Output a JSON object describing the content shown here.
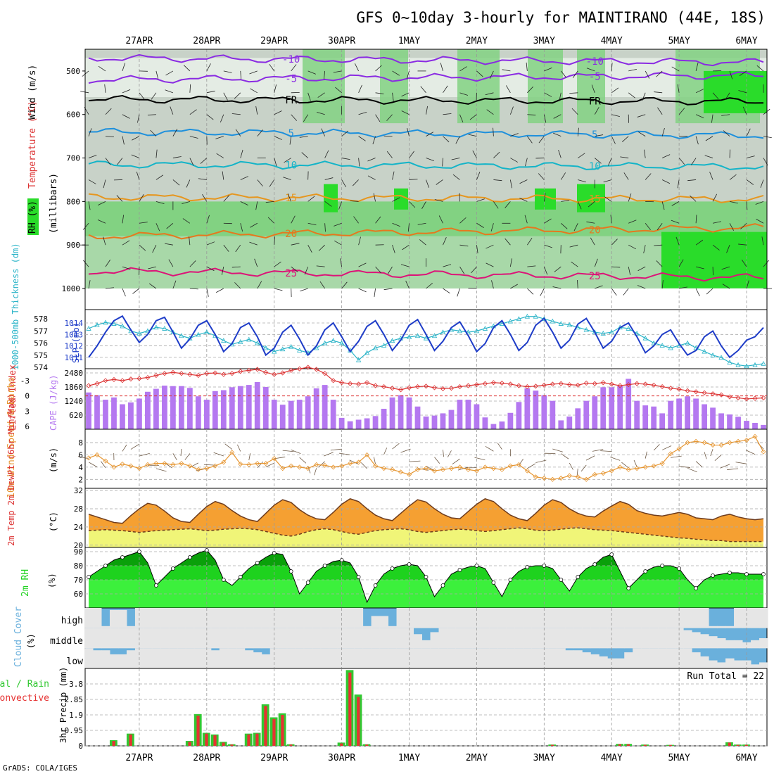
{
  "title": "GFS 0~10day 3-hourly for MAINTIRANO (44E, 18S)",
  "credit": "GrADS: COLA/IGES",
  "dates": [
    "27APR",
    "28APR",
    "29APR",
    "30APR",
    "1MAY",
    "2MAY",
    "3MAY",
    "4MAY",
    "5MAY",
    "6MAY"
  ],
  "colors": {
    "rh_light": "#c8d2c8",
    "rh_mid": "#82d282",
    "rh_high": "#2adc2a",
    "slp": "#1e3cc8",
    "thickness": "#2ab4c8",
    "lifted": "#dc3232",
    "cape": "#b478f0",
    "wind_speed": "#e69632",
    "barb": "#6e5a46",
    "temp_fill": "#f5a032",
    "temp_max": "#f06414",
    "dew_fill": "#f0f578",
    "rh2m_dark": "#0aa00a",
    "rh2m_mid": "#1ed21e",
    "rh2m_light": "#3cf03c",
    "cloud_blue": "#6ab0dc",
    "precip_total": "#32c832",
    "precip_conv": "#e63232"
  },
  "panels": {
    "upper": {
      "ylabels": [
        "Wind (m/s)",
        "Temperature (°C)",
        "RH (%)"
      ],
      "yunit": "(millibars)",
      "levels": [
        "500",
        "600",
        "700",
        "800",
        "900",
        "1000"
      ],
      "isotherms": [
        {
          "label": "-10",
          "color": "#8a2be2",
          "values": [
            -10,
            -10,
            -10,
            -10,
            -10,
            -10,
            -10,
            -10,
            -10,
            -10
          ]
        },
        {
          "label": "-5",
          "color": "#8a2be2",
          "values": [
            -5,
            -5,
            -5,
            -5,
            -5,
            -5,
            -5,
            -5,
            -5,
            -5
          ]
        },
        {
          "label": "FR",
          "color": "#000000",
          "values": [
            0,
            0,
            0,
            0,
            0,
            0,
            0,
            0,
            0,
            0
          ]
        },
        {
          "label": "5",
          "color": "#1e90dc",
          "values": [
            5,
            5,
            5,
            5,
            5,
            5,
            5,
            5,
            5,
            5
          ]
        },
        {
          "label": "10",
          "color": "#14b4c8",
          "values": [
            10,
            10,
            10,
            10,
            10,
            10,
            10,
            10,
            10,
            10
          ]
        },
        {
          "label": "15",
          "color": "#e6961e",
          "values": [
            15,
            15,
            15,
            15,
            15,
            15,
            15,
            15,
            15,
            15
          ]
        },
        {
          "label": "20",
          "color": "#e6781e",
          "values": [
            20,
            20,
            20,
            20,
            20,
            20,
            20,
            20,
            20,
            20
          ]
        },
        {
          "label": "25",
          "color": "#dc1478",
          "values": [
            25,
            25,
            25,
            25,
            25,
            25,
            25,
            25,
            25,
            25
          ]
        }
      ],
      "rh_contour_labels": [
        "30",
        "30",
        "50",
        "50"
      ]
    },
    "slp": {
      "ylabel_left": "1000-500mb Thickness (dm)",
      "ylabel_right": "SLP (mb)",
      "left_ticks": [
        "578",
        "577",
        "576",
        "575",
        "574"
      ],
      "right_ticks": [
        "1014",
        "1013",
        "1012",
        "1011"
      ]
    },
    "cape": {
      "ylabel_left": "Lifted Index",
      "ylabel_right": "CAPE (J/kg)",
      "left_ticks": [
        "-3",
        "0",
        "3",
        "6"
      ],
      "right_ticks": [
        "2480",
        "1860",
        "1240",
        "620"
      ]
    },
    "wind10m": {
      "ylabel": "10m Wind Speed & Barbs",
      "yunit": "(m/s)",
      "ticks": [
        "8",
        "6",
        "4",
        "2"
      ]
    },
    "temp2m": {
      "ylabel": "2m Temp 2m DewPt (6hr Min/Max)",
      "yunit": "(°C)",
      "ticks": [
        "32",
        "28",
        "24",
        "20"
      ]
    },
    "rh2m": {
      "ylabel": "2m RH",
      "yunit": "(%)",
      "ticks": [
        "90",
        "80",
        "70",
        "60"
      ]
    },
    "cloud": {
      "ylabel": "Cloud Cover",
      "yunit": "(%)",
      "levels": [
        "high",
        "middle",
        "low"
      ]
    },
    "precip": {
      "ylabel_left_a": "Total / Rain",
      "ylabel_left_b": "Convective",
      "ylabel": "3hr Precip (mm)",
      "ticks": [
        "3.8",
        "2.85",
        "1.9",
        "0.95",
        "0"
      ],
      "run_total": "Run Total = 22"
    }
  },
  "chart_data": {
    "type": "meteogram",
    "time_step_hours": 3,
    "n_steps": 81,
    "slp_mb": [
      1011.0,
      1012.0,
      1013.2,
      1014.2,
      1014.6,
      1013.4,
      1012.3,
      1013.0,
      1014.2,
      1014.5,
      1013.2,
      1011.8,
      1012.6,
      1013.8,
      1014.2,
      1013.0,
      1011.5,
      1012.2,
      1013.6,
      1014.0,
      1012.8,
      1011.2,
      1011.8,
      1013.2,
      1013.8,
      1012.6,
      1011.2,
      1012.0,
      1013.4,
      1014.0,
      1012.8,
      1011.5,
      1012.4,
      1013.7,
      1014.2,
      1013.0,
      1011.6,
      1012.5,
      1013.8,
      1014.3,
      1013.0,
      1011.6,
      1012.4,
      1013.6,
      1014.1,
      1012.9,
      1011.5,
      1012.2,
      1013.6,
      1014.2,
      1013.0,
      1011.6,
      1012.3,
      1013.8,
      1014.4,
      1013.2,
      1011.8,
      1012.5,
      1013.9,
      1014.4,
      1013.2,
      1011.8,
      1012.4,
      1013.6,
      1014.0,
      1012.8,
      1011.4,
      1012.0,
      1013.0,
      1013.4,
      1012.2,
      1011.2,
      1011.6,
      1012.8,
      1013.3,
      1012.0,
      1011.0,
      1011.6,
      1012.5,
      1012.8,
      1013.6
    ],
    "thickness_dm": [
      577.2,
      577.5,
      577.7,
      577.6,
      577.4,
      577.0,
      576.8,
      577.0,
      577.3,
      577.2,
      576.9,
      576.6,
      576.4,
      576.7,
      576.9,
      576.6,
      576.2,
      575.9,
      576.1,
      576.3,
      576.0,
      575.6,
      575.3,
      575.5,
      575.7,
      575.4,
      575.2,
      575.6,
      576.0,
      576.2,
      576.0,
      575.4,
      574.6,
      575.2,
      575.6,
      575.8,
      576.2,
      576.4,
      576.5,
      576.6,
      576.4,
      576.6,
      576.9,
      577.1,
      577.0,
      576.9,
      577.0,
      577.2,
      577.4,
      577.6,
      577.8,
      578.0,
      578.2,
      578.2,
      578.0,
      577.8,
      577.6,
      577.5,
      577.3,
      577.1,
      576.9,
      576.8,
      576.9,
      577.3,
      577.2,
      576.8,
      576.4,
      576.0,
      575.8,
      575.6,
      575.8,
      576.0,
      575.6,
      575.3,
      575.0,
      574.8,
      574.4,
      574.2,
      574.1,
      574.2,
      574.3
    ],
    "lifted_index": [
      -2.0,
      -2.4,
      -3.0,
      -3.2,
      -3.0,
      -3.3,
      -3.4,
      -3.6,
      -4.0,
      -4.4,
      -4.6,
      -4.4,
      -4.2,
      -4.0,
      -4.4,
      -4.5,
      -4.2,
      -4.4,
      -4.8,
      -5.0,
      -5.2,
      -4.6,
      -4.2,
      -4.5,
      -5.0,
      -5.3,
      -5.6,
      -5.2,
      -4.4,
      -3.0,
      -2.6,
      -2.4,
      -2.3,
      -2.6,
      -2.0,
      -1.8,
      -1.5,
      -1.2,
      -1.6,
      -1.8,
      -1.9,
      -1.6,
      -1.4,
      -1.5,
      -1.8,
      -2.0,
      -2.2,
      -2.4,
      -2.6,
      -2.5,
      -2.3,
      -2.0,
      -1.8,
      -1.9,
      -2.1,
      -2.3,
      -2.4,
      -2.2,
      -2.1,
      -2.5,
      -2.4,
      -2.6,
      -2.3,
      -2.0,
      -2.2,
      -2.4,
      -2.3,
      -2.1,
      -1.8,
      -1.5,
      -1.3,
      -1.0,
      -0.8,
      -0.6,
      -0.4,
      -0.2,
      0.2,
      0.4,
      0.6,
      0.5,
      0.4
    ],
    "cape_jkg": [
      1620,
      1500,
      1300,
      1400,
      1100,
      1180,
      1350,
      1650,
      1780,
      1920,
      1900,
      1900,
      1820,
      1450,
      1300,
      1680,
      1720,
      1850,
      1900,
      1950,
      2080,
      1860,
      1300,
      1080,
      1250,
      1300,
      1450,
      1800,
      1950,
      1300,
      500,
      350,
      420,
      480,
      580,
      900,
      1400,
      1500,
      1400,
      1000,
      560,
      600,
      700,
      850,
      1300,
      1300,
      1100,
      520,
      230,
      340,
      720,
      1200,
      1800,
      1700,
      1500,
      1250,
      390,
      560,
      920,
      1250,
      1450,
      1850,
      1850,
      1900,
      2220,
      1250,
      1050,
      1000,
      700,
      1250,
      1350,
      1450,
      1350,
      1100,
      950,
      700,
      650,
      550,
      370,
      280,
      190
    ],
    "wind10m_ms": [
      5.5,
      6.0,
      5.0,
      4.0,
      4.5,
      4.2,
      3.8,
      4.4,
      4.6,
      4.6,
      4.4,
      4.6,
      4.2,
      3.6,
      3.8,
      4.2,
      4.8,
      6.4,
      4.5,
      4.4,
      4.6,
      4.6,
      5.4,
      3.8,
      4.2,
      4.0,
      3.8,
      4.4,
      4.3,
      4.0,
      4.2,
      4.6,
      4.8,
      6.0,
      4.2,
      3.8,
      3.6,
      3.2,
      2.8,
      3.6,
      3.8,
      3.4,
      3.6,
      3.8,
      4.0,
      3.6,
      3.4,
      4.0,
      3.8,
      3.6,
      4.2,
      4.4,
      3.4,
      2.4,
      2.2,
      2.0,
      2.2,
      2.6,
      2.4,
      2.0,
      2.8,
      3.0,
      3.4,
      4.0,
      3.6,
      3.8,
      4.0,
      4.2,
      4.6,
      6.2,
      7.0,
      8.0,
      8.2,
      8.0,
      7.6,
      7.6,
      8.0,
      8.2,
      8.4,
      9.0,
      6.5
    ],
    "temp2m_c": [
      26.8,
      26.2,
      25.6,
      25.0,
      24.8,
      26.5,
      28.0,
      29.2,
      28.8,
      27.5,
      26.0,
      25.2,
      25.0,
      26.8,
      28.5,
      29.6,
      29.0,
      27.6,
      26.4,
      25.6,
      25.2,
      27.0,
      28.8,
      30.0,
      29.4,
      27.8,
      26.6,
      25.8,
      25.6,
      27.2,
      29.0,
      30.2,
      29.6,
      28.0,
      26.6,
      25.8,
      25.4,
      27.0,
      28.6,
      30.0,
      29.5,
      28.0,
      26.8,
      26.0,
      25.8,
      27.4,
      29.0,
      30.2,
      29.6,
      28.0,
      26.6,
      25.8,
      25.4,
      27.0,
      28.8,
      30.0,
      29.4,
      28.0,
      27.0,
      26.4,
      26.2,
      27.5,
      28.6,
      29.6,
      29.0,
      27.6,
      27.0,
      26.6,
      26.4,
      26.8,
      27.2,
      26.8,
      26.0,
      25.8,
      25.6,
      26.4,
      26.8,
      26.2,
      25.8,
      25.6,
      25.8
    ],
    "dewpt2m_c": [
      23.2,
      23.3,
      23.4,
      23.3,
      23.2,
      23.0,
      22.8,
      23.0,
      23.2,
      23.3,
      23.4,
      23.5,
      23.6,
      23.4,
      23.2,
      23.3,
      23.5,
      23.6,
      23.7,
      23.6,
      23.4,
      23.0,
      22.6,
      22.2,
      22.0,
      22.4,
      23.0,
      23.4,
      23.6,
      23.4,
      23.0,
      22.6,
      22.4,
      22.8,
      23.2,
      23.4,
      23.5,
      23.6,
      23.4,
      23.0,
      22.8,
      23.0,
      23.2,
      23.4,
      23.5,
      23.4,
      23.2,
      23.0,
      23.2,
      23.4,
      23.6,
      23.8,
      23.6,
      23.3,
      23.2,
      23.3,
      23.5,
      23.7,
      23.8,
      23.6,
      23.4,
      23.3,
      23.2,
      23.0,
      22.8,
      22.6,
      22.4,
      22.2,
      22.0,
      21.8,
      21.6,
      21.5,
      21.3,
      21.2,
      21.0,
      21.0,
      20.8,
      20.8,
      20.8,
      20.8,
      20.8
    ],
    "rh2m_pct": [
      72,
      76,
      80,
      84,
      86,
      88,
      90,
      82,
      66,
      72,
      78,
      82,
      86,
      89,
      91,
      84,
      70,
      66,
      72,
      78,
      82,
      86,
      89,
      88,
      76,
      60,
      68,
      76,
      80,
      83,
      84,
      82,
      72,
      54,
      66,
      74,
      78,
      80,
      81,
      80,
      72,
      58,
      66,
      74,
      77,
      79,
      80,
      78,
      68,
      58,
      70,
      76,
      79,
      80,
      80,
      78,
      70,
      62,
      72,
      78,
      81,
      86,
      88,
      76,
      64,
      70,
      76,
      79,
      80,
      80,
      78,
      70,
      64,
      70,
      73,
      74,
      75,
      75,
      74,
      74,
      74
    ],
    "cloud_high_pct": [
      0,
      0,
      90,
      10,
      10,
      90,
      0,
      0,
      0,
      0,
      0,
      0,
      0,
      0,
      0,
      0,
      0,
      0,
      0,
      0,
      0,
      0,
      0,
      0,
      0,
      0,
      0,
      0,
      0,
      0,
      0,
      0,
      0,
      90,
      40,
      40,
      90,
      0,
      0,
      0,
      0,
      0,
      0,
      0,
      0,
      0,
      0,
      0,
      0,
      0,
      0,
      0,
      0,
      0,
      0,
      0,
      0,
      0,
      0,
      0,
      0,
      0,
      0,
      0,
      0,
      0,
      0,
      0,
      0,
      0,
      0,
      0,
      0,
      0,
      90,
      90,
      90,
      0,
      0,
      0,
      0
    ],
    "cloud_mid_pct": [
      0,
      0,
      0,
      0,
      0,
      0,
      0,
      0,
      0,
      0,
      0,
      0,
      0,
      0,
      0,
      0,
      0,
      0,
      0,
      0,
      0,
      0,
      0,
      0,
      0,
      0,
      0,
      0,
      0,
      0,
      0,
      0,
      0,
      0,
      0,
      0,
      0,
      0,
      0,
      30,
      60,
      20,
      0,
      0,
      0,
      0,
      0,
      0,
      0,
      0,
      0,
      0,
      0,
      0,
      0,
      0,
      0,
      0,
      0,
      0,
      0,
      0,
      0,
      0,
      0,
      0,
      0,
      0,
      0,
      0,
      0,
      10,
      20,
      30,
      40,
      50,
      60,
      60,
      70,
      60,
      50
    ],
    "cloud_low_pct": [
      0,
      10,
      10,
      30,
      30,
      10,
      0,
      0,
      0,
      0,
      0,
      0,
      0,
      0,
      0,
      10,
      0,
      0,
      0,
      10,
      20,
      30,
      0,
      0,
      0,
      0,
      0,
      0,
      0,
      0,
      0,
      0,
      0,
      0,
      0,
      0,
      0,
      0,
      0,
      0,
      0,
      0,
      0,
      0,
      0,
      0,
      0,
      0,
      0,
      0,
      0,
      0,
      0,
      0,
      0,
      0,
      0,
      10,
      10,
      20,
      30,
      40,
      50,
      50,
      20,
      0,
      0,
      0,
      0,
      0,
      0,
      0,
      20,
      40,
      60,
      70,
      50,
      60,
      60,
      80,
      70
    ],
    "precip_total_mm": [
      0,
      0,
      0,
      0.35,
      0,
      0.75,
      0,
      0,
      0,
      0,
      0,
      0,
      0.3,
      1.95,
      0.8,
      0.7,
      0.25,
      0.1,
      0,
      0.75,
      0.8,
      2.55,
      1.75,
      2.0,
      0.1,
      0,
      0,
      0,
      0,
      0,
      0.2,
      4.65,
      3.15,
      0.1,
      0,
      0,
      0,
      0,
      0,
      0,
      0,
      0,
      0,
      0,
      0,
      0,
      0,
      0,
      0,
      0,
      0,
      0,
      0,
      0,
      0,
      0.08,
      0,
      0,
      0,
      0,
      0,
      0,
      0,
      0.12,
      0.12,
      0,
      0.08,
      0,
      0,
      0.06,
      0,
      0,
      0,
      0,
      0,
      0,
      0.22,
      0.08,
      0.08,
      0,
      0
    ],
    "precip_conv_mm": [
      0,
      0,
      0,
      0.3,
      0,
      0.7,
      0,
      0,
      0,
      0,
      0,
      0,
      0.25,
      1.85,
      0.75,
      0.65,
      0.2,
      0.08,
      0,
      0.7,
      0.75,
      2.45,
      1.65,
      1.9,
      0.08,
      0,
      0,
      0,
      0,
      0,
      0.15,
      4.5,
      3.0,
      0.08,
      0,
      0,
      0,
      0,
      0,
      0,
      0,
      0,
      0,
      0,
      0,
      0,
      0,
      0,
      0,
      0,
      0,
      0,
      0,
      0,
      0,
      0.06,
      0,
      0,
      0,
      0,
      0,
      0,
      0,
      0.1,
      0.1,
      0,
      0.06,
      0,
      0,
      0.05,
      0,
      0,
      0,
      0,
      0,
      0,
      0.2,
      0.06,
      0.06,
      0,
      0
    ]
  }
}
